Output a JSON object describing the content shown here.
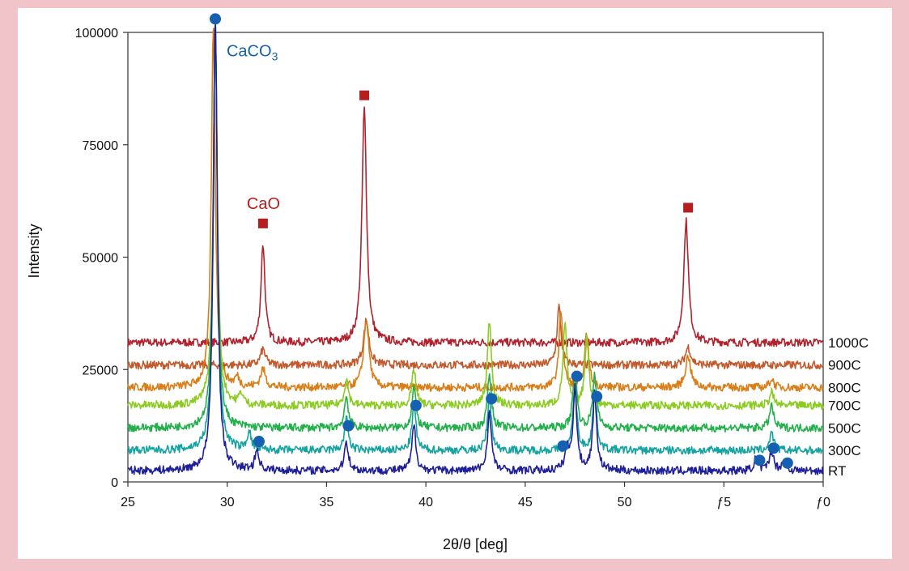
{
  "chart_data": {
    "type": "line",
    "title": "",
    "xlabel": "2θ/θ [deg]",
    "ylabel": "Intensity",
    "xlim": [
      25,
      60
    ],
    "ylim": [
      0,
      100000
    ],
    "x_ticks": [
      {
        "value": 25,
        "label": "25"
      },
      {
        "value": 30,
        "label": "30"
      },
      {
        "value": 35,
        "label": "35"
      },
      {
        "value": 40,
        "label": "40"
      },
      {
        "value": 45,
        "label": "45"
      },
      {
        "value": 50,
        "label": "50"
      },
      {
        "value": 55,
        "label": "ƒ5"
      },
      {
        "value": 60,
        "label": "ƒ0"
      }
    ],
    "y_ticks": [
      {
        "value": 0,
        "label": "0"
      },
      {
        "value": 25000,
        "label": "25000"
      },
      {
        "value": 50000,
        "label": "50000"
      },
      {
        "value": 75000,
        "label": "75000"
      },
      {
        "value": 100000,
        "label": "100000"
      }
    ],
    "series": [
      {
        "name": "RT",
        "color": "#1f1f9a",
        "baseline": 2500,
        "peaks": [
          [
            29.4,
            102000,
            0.12
          ],
          [
            31.5,
            4500,
            0.12
          ],
          [
            36.0,
            6500,
            0.12
          ],
          [
            39.4,
            10000,
            0.12
          ],
          [
            43.2,
            13000,
            0.12
          ],
          [
            47.1,
            4500,
            0.12
          ],
          [
            47.5,
            18000,
            0.12
          ],
          [
            48.5,
            17000,
            0.12
          ],
          [
            56.6,
            2500,
            0.12
          ],
          [
            57.4,
            4500,
            0.12
          ],
          [
            58.0,
            2000,
            0.12
          ]
        ]
      },
      {
        "name": "300C",
        "color": "#14a3a0",
        "baseline": 7000,
        "peaks": [
          [
            29.4,
            95000,
            0.12
          ],
          [
            31.1,
            4000,
            0.12
          ],
          [
            36.0,
            7000,
            0.12
          ],
          [
            39.4,
            10000,
            0.12
          ],
          [
            43.2,
            12000,
            0.12
          ],
          [
            47.5,
            14000,
            0.12
          ],
          [
            48.5,
            13000,
            0.12
          ],
          [
            57.4,
            4000,
            0.12
          ]
        ]
      },
      {
        "name": "500C",
        "color": "#22b04a",
        "baseline": 12000,
        "peaks": [
          [
            29.4,
            90000,
            0.12
          ],
          [
            36.0,
            7000,
            0.12
          ],
          [
            39.4,
            9000,
            0.12
          ],
          [
            43.2,
            12000,
            0.12
          ],
          [
            47.5,
            13000,
            0.12
          ],
          [
            48.5,
            12000,
            0.12
          ],
          [
            57.4,
            5000,
            0.12
          ]
        ]
      },
      {
        "name": "700C",
        "color": "#8ccc22",
        "baseline": 17000,
        "peaks": [
          [
            29.4,
            85000,
            0.12
          ],
          [
            30.7,
            2500,
            0.12
          ],
          [
            36.0,
            6000,
            0.12
          ],
          [
            39.4,
            8000,
            0.12
          ],
          [
            43.2,
            19000,
            0.12
          ],
          [
            47.0,
            18000,
            0.12
          ],
          [
            48.1,
            15000,
            0.12
          ],
          [
            57.4,
            3000,
            0.12
          ]
        ]
      },
      {
        "name": "800C",
        "color": "#d97e18",
        "baseline": 21000,
        "peaks": [
          [
            29.3,
            80000,
            0.12
          ],
          [
            30.5,
            2000,
            0.12
          ],
          [
            31.8,
            4000,
            0.15
          ],
          [
            37.0,
            15000,
            0.16
          ],
          [
            46.8,
            17000,
            0.12
          ],
          [
            48.1,
            12000,
            0.12
          ],
          [
            53.2,
            7000,
            0.16
          ],
          [
            57.4,
            2000,
            0.12
          ]
        ]
      },
      {
        "name": "900C",
        "color": "#c25a2c",
        "baseline": 26000,
        "peaks": [
          [
            31.8,
            3500,
            0.15
          ],
          [
            37.0,
            10000,
            0.16
          ],
          [
            46.7,
            13000,
            0.12
          ],
          [
            53.2,
            4000,
            0.16
          ]
        ]
      },
      {
        "name": "1000C",
        "color": "#b0222e",
        "baseline": 31000,
        "peaks": [
          [
            31.8,
            22000,
            0.12
          ],
          [
            36.9,
            52000,
            0.14
          ],
          [
            53.1,
            27000,
            0.14
          ]
        ]
      }
    ],
    "markers": {
      "caco3": {
        "label": "CaCO",
        "sub": "3",
        "color": "#1560b0",
        "points": [
          [
            29.4,
            103000
          ],
          [
            31.6,
            9000
          ],
          [
            36.1,
            12500
          ],
          [
            39.5,
            17000
          ],
          [
            43.3,
            18500
          ],
          [
            46.9,
            8000
          ],
          [
            47.6,
            23500
          ],
          [
            48.6,
            19000
          ],
          [
            56.8,
            4800
          ],
          [
            57.5,
            7500
          ],
          [
            58.2,
            4200
          ]
        ]
      },
      "cao": {
        "label": "CaO",
        "color": "#b51e1e",
        "points": [
          [
            31.8,
            57500
          ],
          [
            36.9,
            86000
          ],
          [
            53.2,
            61000
          ]
        ]
      }
    }
  }
}
